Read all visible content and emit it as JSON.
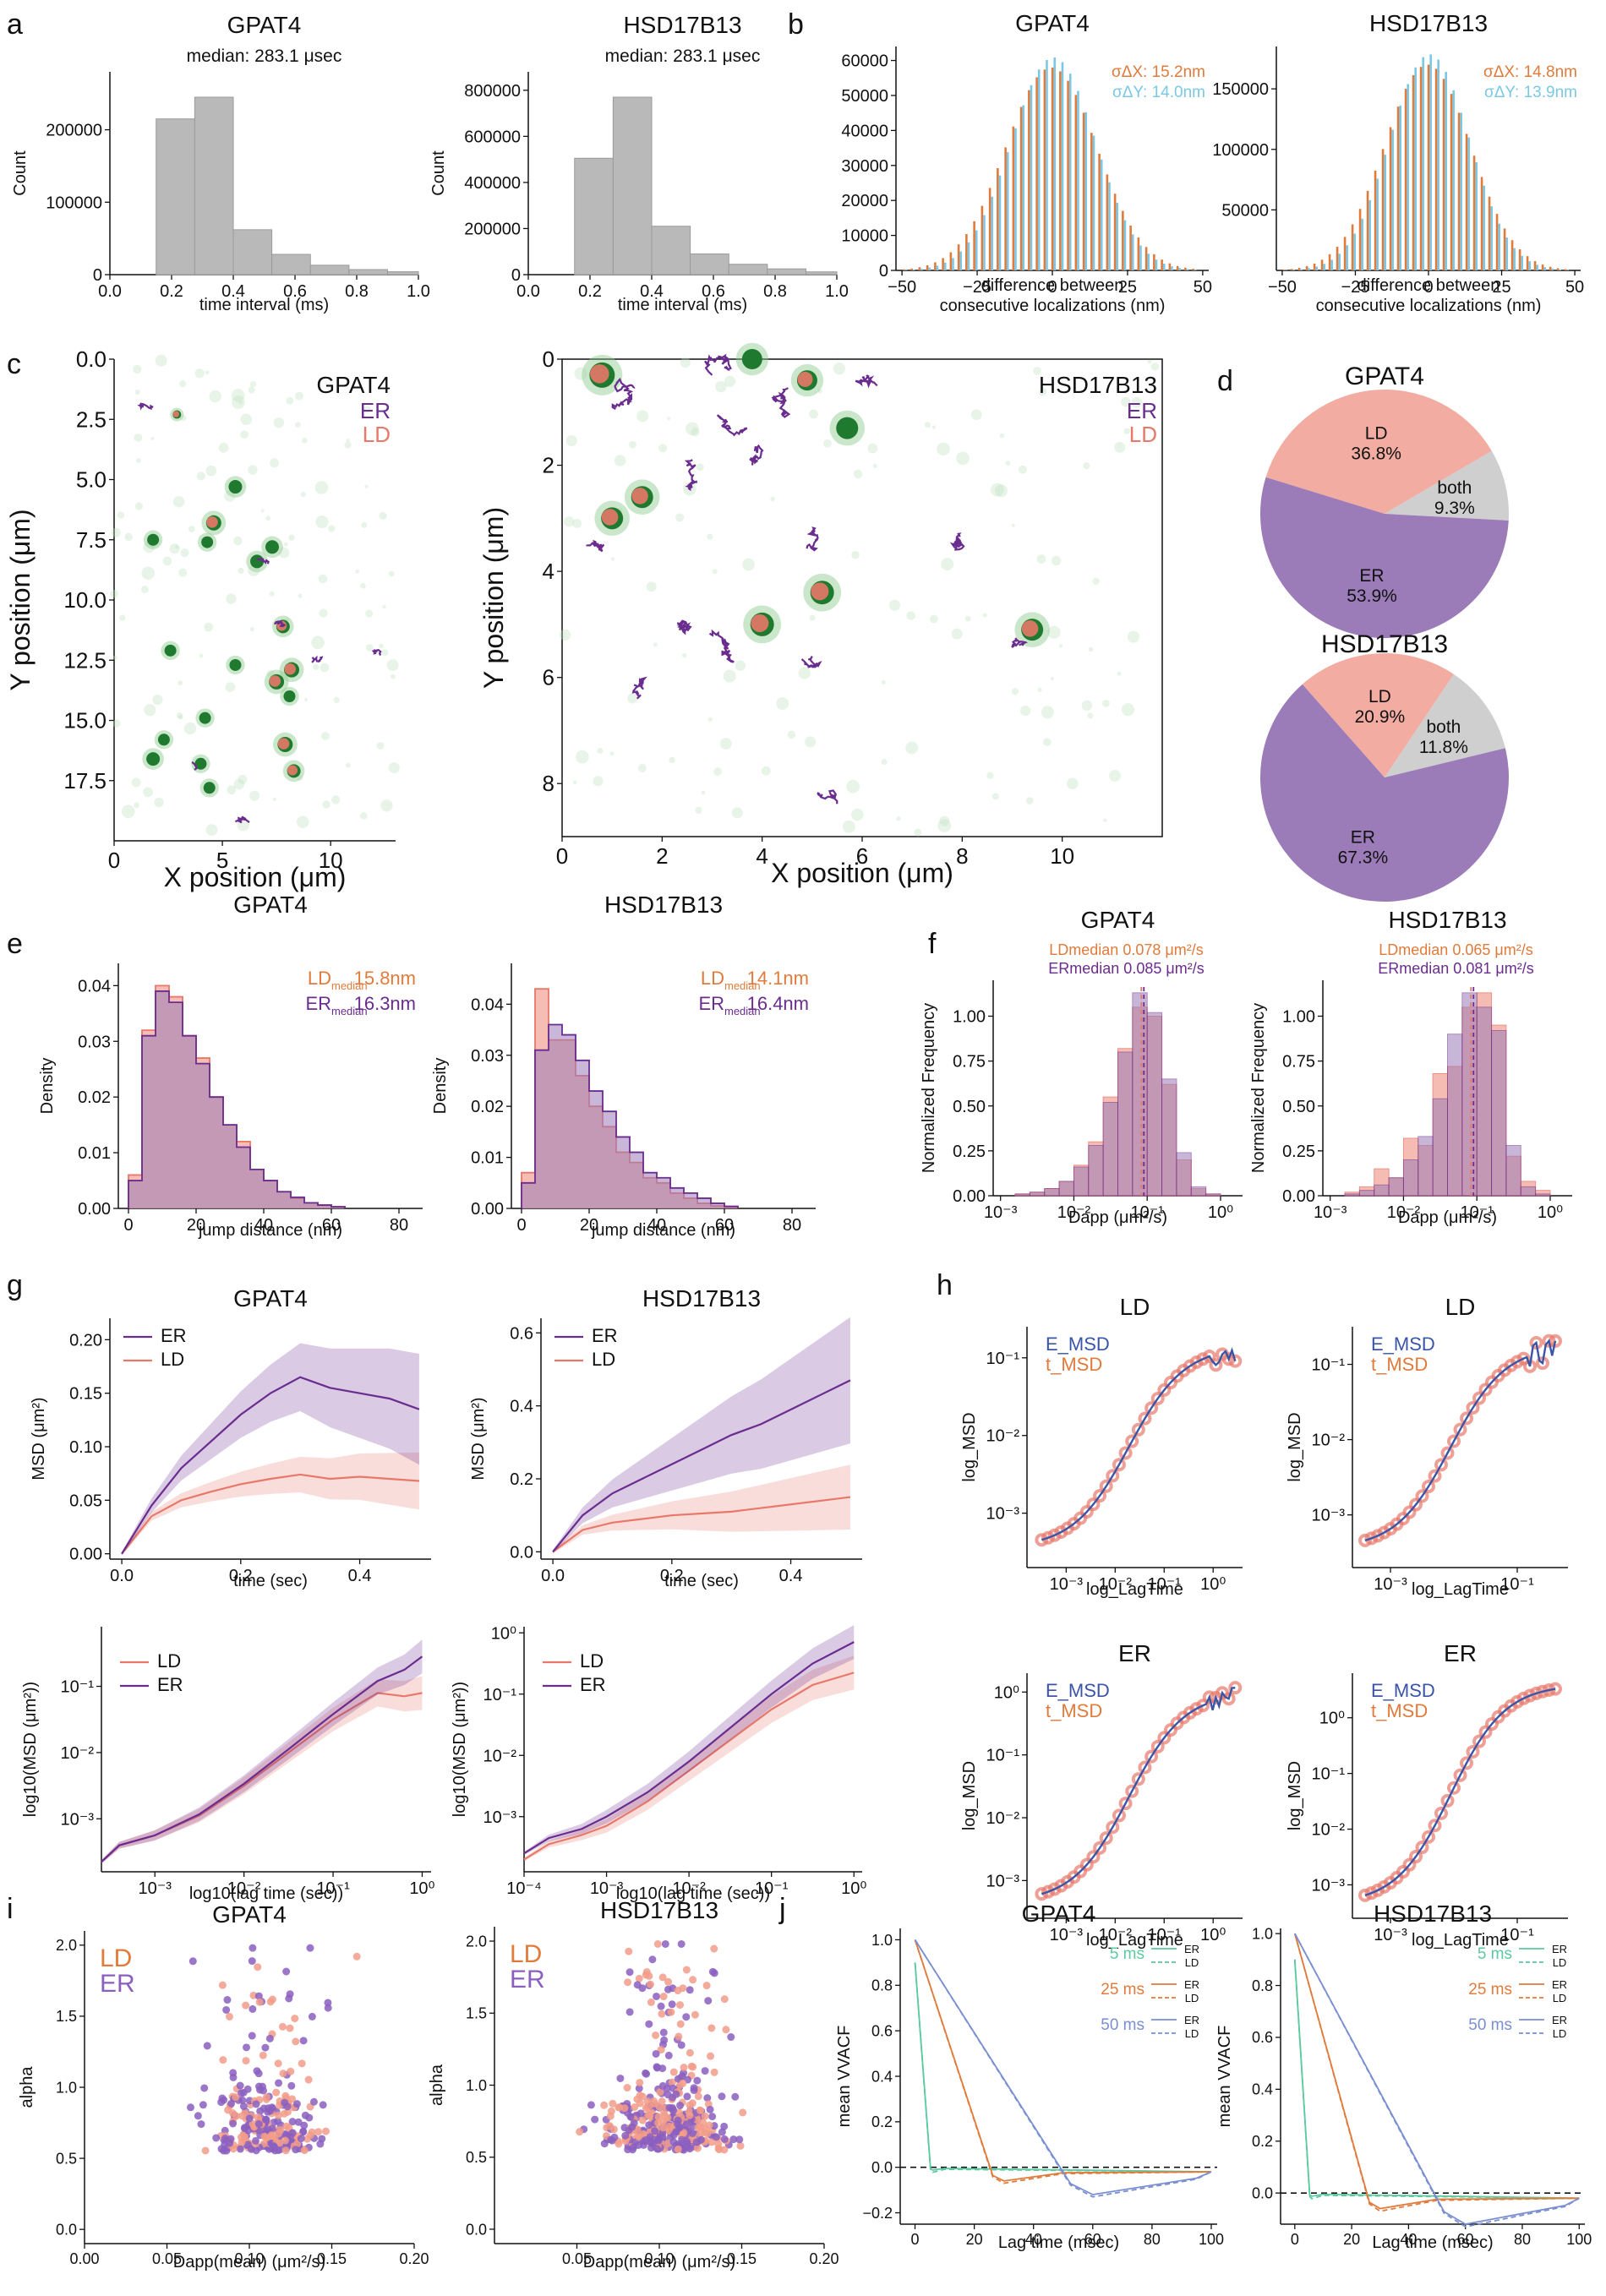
{
  "colors": {
    "er": "#6a2c8e",
    "er_fill": "#9b7bb8",
    "ld": "#e8786a",
    "ld_fill": "#f2aca1",
    "orange": "#e07b3c",
    "cyan": "#7ac8e6",
    "gray": "#b9b9b9",
    "green": "#1f7a2f",
    "blue": "#3a55a8",
    "teal": "#5cc9a0"
  },
  "panel_letters": [
    "a",
    "b",
    "c",
    "d",
    "e",
    "f",
    "g",
    "h",
    "i",
    "j"
  ],
  "chart_data": [
    {
      "id": "a1",
      "type": "bar",
      "title": "GPAT4",
      "subtitle": "median: 283.1 μsec",
      "xlabel": "time interval (ms)",
      "ylabel": "Count",
      "xlim": [
        0,
        1.0
      ],
      "ylim": [
        0,
        280000
      ],
      "xticks": [
        "0.0",
        "0.2",
        "0.4",
        "0.6",
        "0.8",
        "1.0"
      ],
      "yticks": [
        "0",
        "100000",
        "200000"
      ],
      "bins": [
        [
          0.15,
          0.275
        ],
        [
          0.275,
          0.4
        ],
        [
          0.4,
          0.525
        ],
        [
          0.525,
          0.65
        ],
        [
          0.65,
          0.775
        ],
        [
          0.775,
          0.9
        ],
        [
          0.9,
          1.0
        ]
      ],
      "values": [
        215000,
        245000,
        62000,
        28000,
        13000,
        7000,
        4000
      ]
    },
    {
      "id": "a2",
      "type": "bar",
      "title": "HSD17B13",
      "subtitle": "median: 283.1 μsec",
      "xlabel": "time interval (ms)",
      "ylabel": "Count",
      "xlim": [
        0,
        1.0
      ],
      "ylim": [
        0,
        880000
      ],
      "xticks": [
        "0.0",
        "0.2",
        "0.4",
        "0.6",
        "0.8",
        "1.0"
      ],
      "yticks": [
        "0",
        "200000",
        "400000",
        "600000",
        "800000"
      ],
      "bins": [
        [
          0.15,
          0.275
        ],
        [
          0.275,
          0.4
        ],
        [
          0.4,
          0.525
        ],
        [
          0.525,
          0.65
        ],
        [
          0.65,
          0.775
        ],
        [
          0.775,
          0.9
        ],
        [
          0.9,
          1.0
        ]
      ],
      "values": [
        505000,
        770000,
        210000,
        90000,
        45000,
        25000,
        12000
      ]
    },
    {
      "id": "b1",
      "type": "bar",
      "title": "GPAT4",
      "xlabel": "difference between consecutive localizations (nm)",
      "xlim": [
        -52,
        52
      ],
      "ylim": [
        0,
        64000
      ],
      "xticks": [
        "−50",
        "−25",
        "0",
        "25",
        "50"
      ],
      "yticks": [
        "0",
        "10000",
        "20000",
        "30000",
        "40000",
        "50000",
        "60000"
      ],
      "sigma": 15.2,
      "peak": 58000,
      "legend": [
        "σΔX: 15.2nm",
        "σΔY: 14.0nm"
      ]
    },
    {
      "id": "b2",
      "type": "bar",
      "title": "HSD17B13",
      "xlabel": "difference between consecutive localizations (nm)",
      "xlim": [
        -52,
        52
      ],
      "ylim": [
        0,
        185000
      ],
      "xticks": [
        "−50",
        "−25",
        "0",
        "25",
        "50"
      ],
      "yticks": [
        "50000",
        "100000",
        "150000"
      ],
      "sigma": 14.8,
      "peak": 170000,
      "legend": [
        "σΔX: 14.8nm",
        "σΔY: 13.9nm"
      ]
    },
    {
      "id": "c1",
      "type": "scatter",
      "title": "GPAT4",
      "xlabel": "X position (μm)",
      "ylabel": "Y position (μm)",
      "xlim": [
        0,
        13
      ],
      "ylim": [
        0,
        20
      ],
      "xticks": [
        "0",
        "5",
        "10"
      ],
      "yticks": [
        "0.0",
        "2.5",
        "5.0",
        "7.5",
        "10.0",
        "12.5",
        "15.0",
        "17.5"
      ],
      "legend": [
        "ER",
        "LD"
      ]
    },
    {
      "id": "c2",
      "type": "scatter",
      "title": "HSD17B13",
      "xlabel": "X position (μm)",
      "ylabel": "Y position (μm)",
      "xlim": [
        0,
        12
      ],
      "ylim": [
        0,
        9
      ],
      "xticks": [
        "0",
        "2",
        "4",
        "6",
        "8",
        "10"
      ],
      "yticks": [
        "0",
        "2",
        "4",
        "6",
        "8"
      ],
      "legend": [
        "ER",
        "LD"
      ]
    },
    {
      "id": "d1",
      "type": "pie",
      "title": "GPAT4",
      "categories": [
        "LD",
        "both",
        "ER"
      ],
      "values": [
        36.8,
        9.3,
        53.9
      ],
      "labels": [
        "36.8%",
        "9.3%",
        "53.9%"
      ]
    },
    {
      "id": "d2",
      "type": "pie",
      "title": "HSD17B13",
      "categories": [
        "LD",
        "both",
        "ER"
      ],
      "values": [
        20.9,
        11.8,
        67.3
      ],
      "labels": [
        "20.9%",
        "11.8%",
        "67.3%"
      ]
    },
    {
      "id": "e1",
      "type": "bar",
      "title": "GPAT4",
      "xlabel": "jump distance (nm)",
      "ylabel": "Density",
      "xlim": [
        -3,
        87
      ],
      "ylim": [
        0,
        0.044
      ],
      "xticks": [
        "0",
        "20",
        "40",
        "60",
        "80"
      ],
      "yticks": [
        "0.00",
        "0.01",
        "0.02",
        "0.03",
        "0.04"
      ],
      "binwidth": 4,
      "series": [
        {
          "name": "LD",
          "values": [
            0.006,
            0.032,
            0.04,
            0.038,
            0.031,
            0.027,
            0.02,
            0.015,
            0.012,
            0.007,
            0.005,
            0.003,
            0.0018,
            0.001,
            0.0006,
            0.0003
          ]
        },
        {
          "name": "ER",
          "values": [
            0.005,
            0.031,
            0.039,
            0.037,
            0.031,
            0.026,
            0.02,
            0.015,
            0.011,
            0.007,
            0.005,
            0.003,
            0.002,
            0.001,
            0.0006,
            0.0003
          ]
        }
      ],
      "legend": [
        "LDmedian 15.8nm",
        "ERmedian 16.3nm"
      ]
    },
    {
      "id": "e2",
      "type": "bar",
      "title": "HSD17B13",
      "xlabel": "jump distance (nm)",
      "ylabel": "Density",
      "xlim": [
        -3,
        87
      ],
      "ylim": [
        0,
        0.048
      ],
      "xticks": [
        "0",
        "20",
        "40",
        "60",
        "80"
      ],
      "yticks": [
        "0.00",
        "0.01",
        "0.02",
        "0.03",
        "0.04"
      ],
      "binwidth": 4,
      "series": [
        {
          "name": "LD",
          "values": [
            0.007,
            0.043,
            0.033,
            0.033,
            0.026,
            0.02,
            0.016,
            0.011,
            0.009,
            0.006,
            0.005,
            0.003,
            0.002,
            0.001,
            0.0005,
            0.0002
          ]
        },
        {
          "name": "ER",
          "values": [
            0.005,
            0.031,
            0.036,
            0.034,
            0.029,
            0.023,
            0.019,
            0.014,
            0.011,
            0.007,
            0.006,
            0.004,
            0.003,
            0.002,
            0.001,
            0.0004
          ]
        }
      ],
      "legend": [
        "LDmedian 14.1nm",
        "ERmedian 16.4nm"
      ]
    },
    {
      "id": "f1",
      "type": "bar",
      "title": "GPAT4",
      "xlabel": "Dapp (μm²/s)",
      "ylabel": "Normalized Frequency",
      "xlim": [
        -3.1,
        0.3
      ],
      "ylim": [
        0,
        1.2
      ],
      "xticks": [
        "10⁻³",
        "10⁻²",
        "10⁻¹",
        "10⁰"
      ],
      "yticks": [
        "0.00",
        "0.25",
        "0.50",
        "0.75",
        "1.00"
      ],
      "series": [
        {
          "name": "LD",
          "values": [
            0.01,
            0.02,
            0.04,
            0.08,
            0.17,
            0.3,
            0.55,
            0.82,
            1.05,
            1.0,
            0.62,
            0.2,
            0.04,
            0.01
          ]
        },
        {
          "name": "ER",
          "values": [
            0.01,
            0.02,
            0.04,
            0.08,
            0.16,
            0.28,
            0.52,
            0.8,
            1.13,
            1.02,
            0.65,
            0.24,
            0.05,
            0.01
          ]
        }
      ],
      "legend": [
        "LDmedian 0.078 μm²/s",
        "ERmedian 0.085 μm²/s"
      ]
    },
    {
      "id": "f2",
      "type": "bar",
      "title": "HSD17B13",
      "xlabel": "Dapp (μm²/s)",
      "ylabel": "Normalized Frequency",
      "xlim": [
        -3.1,
        0.3
      ],
      "ylim": [
        0,
        1.2
      ],
      "xticks": [
        "10⁻³",
        "10⁻²",
        "10⁻¹",
        "10⁰"
      ],
      "yticks": [
        "0.00",
        "0.25",
        "0.50",
        "0.75",
        "1.00"
      ],
      "series": [
        {
          "name": "LD",
          "values": [
            0.02,
            0.05,
            0.15,
            0.1,
            0.32,
            0.28,
            0.68,
            0.72,
            1.05,
            1.13,
            0.95,
            0.22,
            0.08,
            0.03
          ]
        },
        {
          "name": "ER",
          "values": [
            0.01,
            0.03,
            0.06,
            0.1,
            0.2,
            0.33,
            0.54,
            0.9,
            1.13,
            1.05,
            0.92,
            0.28,
            0.05,
            0.01
          ]
        }
      ],
      "legend": [
        "LDmedian 0.065 μm²/s",
        "ERmedian 0.081 μm²/s"
      ]
    },
    {
      "id": "g1",
      "type": "line",
      "title": "GPAT4",
      "xlabel": "time (sec)",
      "ylabel": "MSD (μm²)",
      "xlim": [
        -0.02,
        0.52
      ],
      "ylim": [
        -0.005,
        0.22
      ],
      "xticks": [
        "0.0",
        "0.2",
        "0.4"
      ],
      "yticks": [
        "0.00",
        "0.05",
        "0.10",
        "0.15",
        "0.20"
      ],
      "series": [
        {
          "name": "ER",
          "x": [
            0,
            0.05,
            0.1,
            0.15,
            0.2,
            0.25,
            0.3,
            0.35,
            0.4,
            0.45,
            0.5
          ],
          "y": [
            0,
            0.045,
            0.08,
            0.105,
            0.13,
            0.15,
            0.165,
            0.155,
            0.15,
            0.145,
            0.135
          ]
        },
        {
          "name": "LD",
          "x": [
            0,
            0.05,
            0.1,
            0.15,
            0.2,
            0.25,
            0.3,
            0.35,
            0.4,
            0.45,
            0.5
          ],
          "y": [
            0,
            0.035,
            0.05,
            0.058,
            0.065,
            0.07,
            0.074,
            0.07,
            0.072,
            0.07,
            0.068
          ]
        }
      ]
    },
    {
      "id": "g2",
      "type": "line",
      "title": "HSD17B13",
      "xlabel": "time (sec)",
      "ylabel": "MSD (μm²)",
      "xlim": [
        -0.02,
        0.52
      ],
      "ylim": [
        -0.02,
        0.64
      ],
      "xticks": [
        "0.0",
        "0.2",
        "0.4"
      ],
      "yticks": [
        "0.0",
        "0.2",
        "0.4",
        "0.6"
      ],
      "series": [
        {
          "name": "ER",
          "x": [
            0,
            0.05,
            0.1,
            0.15,
            0.2,
            0.25,
            0.3,
            0.35,
            0.4,
            0.45,
            0.5
          ],
          "y": [
            0,
            0.1,
            0.16,
            0.2,
            0.24,
            0.28,
            0.32,
            0.35,
            0.39,
            0.43,
            0.47
          ]
        },
        {
          "name": "LD",
          "x": [
            0,
            0.05,
            0.1,
            0.15,
            0.2,
            0.25,
            0.3,
            0.35,
            0.4,
            0.45,
            0.5
          ],
          "y": [
            0,
            0.06,
            0.08,
            0.09,
            0.1,
            0.105,
            0.11,
            0.12,
            0.13,
            0.14,
            0.15
          ]
        }
      ]
    },
    {
      "id": "g3",
      "type": "line",
      "title": "",
      "xlabel": "log10(lag time (sec))",
      "ylabel": "log10(MSD (μm²))",
      "xlim": [
        -3.6,
        0.1
      ],
      "ylim": [
        -3.8,
        -0.1
      ],
      "xticks": [
        "10⁻³",
        "10⁻²",
        "10⁻¹",
        "10⁰"
      ],
      "yticks": [
        "10⁻³",
        "10⁻²",
        "10⁻¹"
      ],
      "series": [
        {
          "name": "LD",
          "x": [
            -3.6,
            -3.4,
            -3.0,
            -2.5,
            -2.0,
            -1.5,
            -1.0,
            -0.5,
            -0.2,
            0.0
          ],
          "y": [
            -3.65,
            -3.4,
            -3.25,
            -2.95,
            -2.5,
            -2.0,
            -1.5,
            -1.1,
            -1.15,
            -1.1
          ]
        },
        {
          "name": "ER",
          "x": [
            -3.6,
            -3.4,
            -3.0,
            -2.5,
            -2.0,
            -1.5,
            -1.0,
            -0.5,
            -0.2,
            0.0
          ],
          "y": [
            -3.65,
            -3.4,
            -3.25,
            -2.93,
            -2.47,
            -1.95,
            -1.42,
            -0.92,
            -0.75,
            -0.55
          ]
        }
      ]
    },
    {
      "id": "g4",
      "type": "line",
      "title": "",
      "xlabel": "log10(lag time (sec))",
      "ylabel": "log10(MSD (μm²))",
      "xlim": [
        -4.0,
        0.1
      ],
      "ylim": [
        -3.9,
        0.1
      ],
      "xticks": [
        "10⁻⁴",
        "10⁻³",
        "10⁻²",
        "10⁻¹",
        "10⁰"
      ],
      "yticks": [
        "10⁻³",
        "10⁻²",
        "10⁻¹",
        "10⁰"
      ],
      "series": [
        {
          "name": "LD",
          "x": [
            -4.0,
            -3.7,
            -3.3,
            -3.0,
            -2.5,
            -2.0,
            -1.5,
            -1.0,
            -0.5,
            0.0
          ],
          "y": [
            -3.7,
            -3.45,
            -3.3,
            -3.15,
            -2.75,
            -2.25,
            -1.75,
            -1.25,
            -0.85,
            -0.65
          ]
        },
        {
          "name": "ER",
          "x": [
            -4.0,
            -3.7,
            -3.3,
            -3.0,
            -2.5,
            -2.0,
            -1.5,
            -1.0,
            -0.5,
            0.0
          ],
          "y": [
            -3.6,
            -3.35,
            -3.2,
            -3.0,
            -2.6,
            -2.1,
            -1.55,
            -1.0,
            -0.5,
            -0.15
          ]
        }
      ]
    },
    {
      "id": "h1",
      "type": "scatter",
      "title": "LD",
      "xlabel": "log_LagTime",
      "ylabel": "log_MSD",
      "xlim": [
        -3.8,
        0.6
      ],
      "ylim": [
        -3.7,
        -0.6
      ],
      "xticks": [
        "10⁻³",
        "10⁻²",
        "10⁻¹",
        "10⁰"
      ],
      "yticks": [
        "10⁻³",
        "10⁻²",
        "10⁻¹"
      ],
      "legend": [
        "E_MSD",
        "t_MSD"
      ]
    },
    {
      "id": "h2",
      "type": "scatter",
      "title": "LD",
      "xlabel": "log_LagTime",
      "ylabel": "log_MSD",
      "xlim": [
        -3.6,
        -0.2
      ],
      "ylim": [
        -3.7,
        -0.5
      ],
      "xticks": [
        "10⁻³",
        "10⁻¹"
      ],
      "yticks": [
        "10⁻³",
        "10⁻²",
        "10⁻¹"
      ],
      "legend": [
        "E_MSD",
        "t_MSD"
      ]
    },
    {
      "id": "h3",
      "type": "scatter",
      "title": "ER",
      "xlabel": "log_LagTime",
      "ylabel": "log_MSD",
      "xlim": [
        -3.8,
        0.6
      ],
      "ylim": [
        -3.6,
        0.3
      ],
      "xticks": [
        "10⁻³",
        "10⁻²",
        "10⁻¹",
        "10⁰"
      ],
      "yticks": [
        "10⁻³",
        "10⁻²",
        "10⁻¹",
        "10⁰"
      ],
      "legend": [
        "E_MSD",
        "t_MSD"
      ]
    },
    {
      "id": "h4",
      "type": "scatter",
      "title": "ER",
      "xlabel": "log_LagTime",
      "ylabel": "log_MSD",
      "xlim": [
        -3.6,
        -0.2
      ],
      "ylim": [
        -3.6,
        0.8
      ],
      "xticks": [
        "10⁻³",
        "10⁻¹"
      ],
      "yticks": [
        "10⁻³",
        "10⁻²",
        "10⁻¹",
        "10⁰"
      ],
      "legend": [
        "E_MSD",
        "t_MSD"
      ]
    },
    {
      "id": "i1",
      "type": "scatter",
      "title": "GPAT4",
      "xlabel": "Dapp(mean) (μm²/s)",
      "ylabel": "alpha",
      "xlim": [
        0,
        0.2
      ],
      "ylim": [
        -0.1,
        2.1
      ],
      "xticks": [
        "0.00",
        "0.05",
        "0.10",
        "0.15",
        "0.20"
      ],
      "yticks": [
        "0.0",
        "0.5",
        "1.0",
        "1.5",
        "2.0"
      ],
      "legend": [
        "LD",
        "ER"
      ]
    },
    {
      "id": "i2",
      "type": "scatter",
      "title": "HSD17B13",
      "xlabel": "Dapp(mean) (μm²/s)",
      "ylabel": "alpha",
      "xlim": [
        0,
        0.2
      ],
      "ylim": [
        -0.1,
        2.1
      ],
      "xticks": [
        "0.05",
        "0.10",
        "0.15",
        "0.20"
      ],
      "yticks": [
        "0.0",
        "0.5",
        "1.0",
        "1.5",
        "2.0"
      ],
      "legend": [
        "LD",
        "ER"
      ]
    },
    {
      "id": "j1",
      "type": "line",
      "title": "GPAT4",
      "xlabel": "Lag time (msec)",
      "ylabel": "mean VVACF",
      "xlim": [
        -5,
        102
      ],
      "ylim": [
        -0.25,
        1.05
      ],
      "xticks": [
        "0",
        "20",
        "40",
        "60",
        "80",
        "100"
      ],
      "yticks": [
        "−0.2",
        "0.0",
        "0.2",
        "0.4",
        "0.6",
        "0.8",
        "1.0"
      ],
      "legend_groups": [
        "5 ms",
        "25 ms",
        "50 ms"
      ],
      "legend_items": [
        "ER",
        "LD"
      ]
    },
    {
      "id": "j2",
      "type": "line",
      "title": "HSD17B13",
      "xlabel": "Lag time (msec)",
      "ylabel": "mean VVACF",
      "xlim": [
        -5,
        102
      ],
      "ylim": [
        -0.12,
        1.02
      ],
      "xticks": [
        "0",
        "20",
        "40",
        "60",
        "80",
        "100"
      ],
      "yticks": [
        "0.0",
        "0.2",
        "0.4",
        "0.6",
        "0.8",
        "1.0"
      ],
      "legend_groups": [
        "5 ms",
        "25 ms",
        "50 ms"
      ],
      "legend_items": [
        "ER",
        "LD"
      ]
    }
  ]
}
